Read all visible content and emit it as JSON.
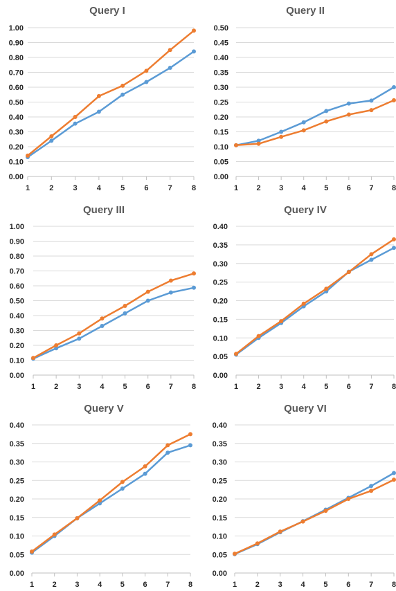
{
  "colors": {
    "series_a": "#5B9BD5",
    "series_b": "#ED7D31",
    "grid": "#D9D9D9",
    "axis": "#BFBFBF",
    "text": "#262626",
    "title": "#595959"
  },
  "chart_data": [
    {
      "type": "line",
      "title": "Query I",
      "x": [
        1,
        2,
        3,
        4,
        5,
        6,
        7,
        8
      ],
      "ylim": [
        0,
        1.0
      ],
      "ystep": 0.1,
      "yticks": [
        "0.00",
        "0.10",
        "0.20",
        "0.30",
        "0.40",
        "0.50",
        "0.60",
        "0.70",
        "0.80",
        "0.90",
        "1.00"
      ],
      "grid": true,
      "series": [
        {
          "color": "#5B9BD5",
          "values": [
            0.13,
            0.24,
            0.355,
            0.435,
            0.55,
            0.635,
            0.73,
            0.84
          ]
        },
        {
          "color": "#ED7D31",
          "values": [
            0.14,
            0.27,
            0.4,
            0.54,
            0.61,
            0.71,
            0.85,
            0.98
          ]
        }
      ]
    },
    {
      "type": "line",
      "title": "Query II",
      "x": [
        1,
        2,
        3,
        4,
        5,
        6,
        7,
        8
      ],
      "ylim": [
        0,
        0.5
      ],
      "ystep": 0.05,
      "yticks": [
        "0.00",
        "0.05",
        "0.10",
        "0.15",
        "0.20",
        "0.25",
        "0.30",
        "0.35",
        "0.40",
        "0.45",
        "0.50"
      ],
      "grid": true,
      "series": [
        {
          "color": "#5B9BD5",
          "values": [
            0.105,
            0.12,
            0.15,
            0.182,
            0.22,
            0.245,
            0.255,
            0.3
          ]
        },
        {
          "color": "#ED7D31",
          "values": [
            0.105,
            0.11,
            0.133,
            0.155,
            0.185,
            0.208,
            0.223,
            0.256
          ]
        }
      ]
    },
    {
      "type": "line",
      "title": "Query III",
      "x": [
        1,
        2,
        3,
        4,
        5,
        6,
        7,
        8
      ],
      "ylim": [
        0,
        1.0
      ],
      "ystep": 0.1,
      "yticks": [
        "0.00",
        "0.10",
        "0.20",
        "0.30",
        "0.40",
        "0.50",
        "0.60",
        "0.70",
        "0.80",
        "0.90",
        "1.00"
      ],
      "grid": true,
      "series": [
        {
          "color": "#5B9BD5",
          "values": [
            0.11,
            0.18,
            0.245,
            0.33,
            0.415,
            0.5,
            0.555,
            0.587
          ]
        },
        {
          "color": "#ED7D31",
          "values": [
            0.115,
            0.2,
            0.28,
            0.38,
            0.465,
            0.56,
            0.635,
            0.683
          ]
        }
      ]
    },
    {
      "type": "line",
      "title": "Query IV",
      "x": [
        1,
        2,
        3,
        4,
        5,
        6,
        7,
        8
      ],
      "ylim": [
        0,
        0.4
      ],
      "ystep": 0.05,
      "yticks": [
        "0.00",
        "0.05",
        "0.10",
        "0.15",
        "0.20",
        "0.25",
        "0.30",
        "0.35",
        "0.40"
      ],
      "grid": true,
      "series": [
        {
          "color": "#5B9BD5",
          "values": [
            0.055,
            0.1,
            0.14,
            0.185,
            0.225,
            0.278,
            0.31,
            0.342
          ]
        },
        {
          "color": "#ED7D31",
          "values": [
            0.057,
            0.105,
            0.145,
            0.192,
            0.232,
            0.277,
            0.325,
            0.365
          ]
        }
      ]
    },
    {
      "type": "line",
      "title": "Query V",
      "x": [
        1,
        2,
        3,
        4,
        5,
        6,
        7,
        8
      ],
      "ylim": [
        0,
        0.4
      ],
      "ystep": 0.05,
      "yticks": [
        "0.00",
        "0.05",
        "0.10",
        "0.15",
        "0.20",
        "0.25",
        "0.30",
        "0.35",
        "0.40"
      ],
      "grid": true,
      "series": [
        {
          "color": "#5B9BD5",
          "values": [
            0.055,
            0.1,
            0.148,
            0.188,
            0.228,
            0.268,
            0.325,
            0.345
          ]
        },
        {
          "color": "#ED7D31",
          "values": [
            0.058,
            0.104,
            0.148,
            0.196,
            0.246,
            0.288,
            0.345,
            0.375
          ]
        }
      ]
    },
    {
      "type": "line",
      "title": "Query VI",
      "x": [
        1,
        2,
        3,
        4,
        5,
        6,
        7,
        8
      ],
      "ylim": [
        0,
        0.4
      ],
      "ystep": 0.05,
      "yticks": [
        "0.00",
        "0.05",
        "0.10",
        "0.15",
        "0.20",
        "0.25",
        "0.30",
        "0.35",
        "0.40"
      ],
      "grid": true,
      "series": [
        {
          "color": "#5B9BD5",
          "values": [
            0.051,
            0.078,
            0.11,
            0.14,
            0.171,
            0.203,
            0.235,
            0.27
          ]
        },
        {
          "color": "#ED7D31",
          "values": [
            0.052,
            0.08,
            0.112,
            0.139,
            0.168,
            0.2,
            0.222,
            0.252
          ]
        }
      ]
    }
  ]
}
